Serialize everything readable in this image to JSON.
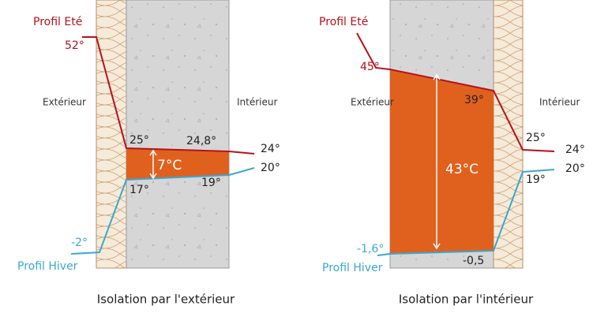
{
  "diagrams": [
    {
      "caption": "Isolation par l'extérieur",
      "exterior": "Extérieur",
      "interior": "Intérieur",
      "summer_profile": "Profil Eté",
      "winter_profile": "Profil Hiver",
      "delta": "7°C",
      "temps": [
        "52°",
        "25°",
        "24,8°",
        "24°",
        "20°",
        "17°",
        "19°",
        "-2°"
      ]
    },
    {
      "caption": "Isolation par l'intérieur",
      "exterior": "Extérieur",
      "interior": "Intérieur",
      "summer_profile": "Profil Eté",
      "winter_profile": "Profil Hiver",
      "delta": "43°C",
      "temps": [
        "45°",
        "39°",
        "25°",
        "24°",
        "20°",
        "19°",
        "-1,6°",
        "-0,5"
      ]
    }
  ]
}
